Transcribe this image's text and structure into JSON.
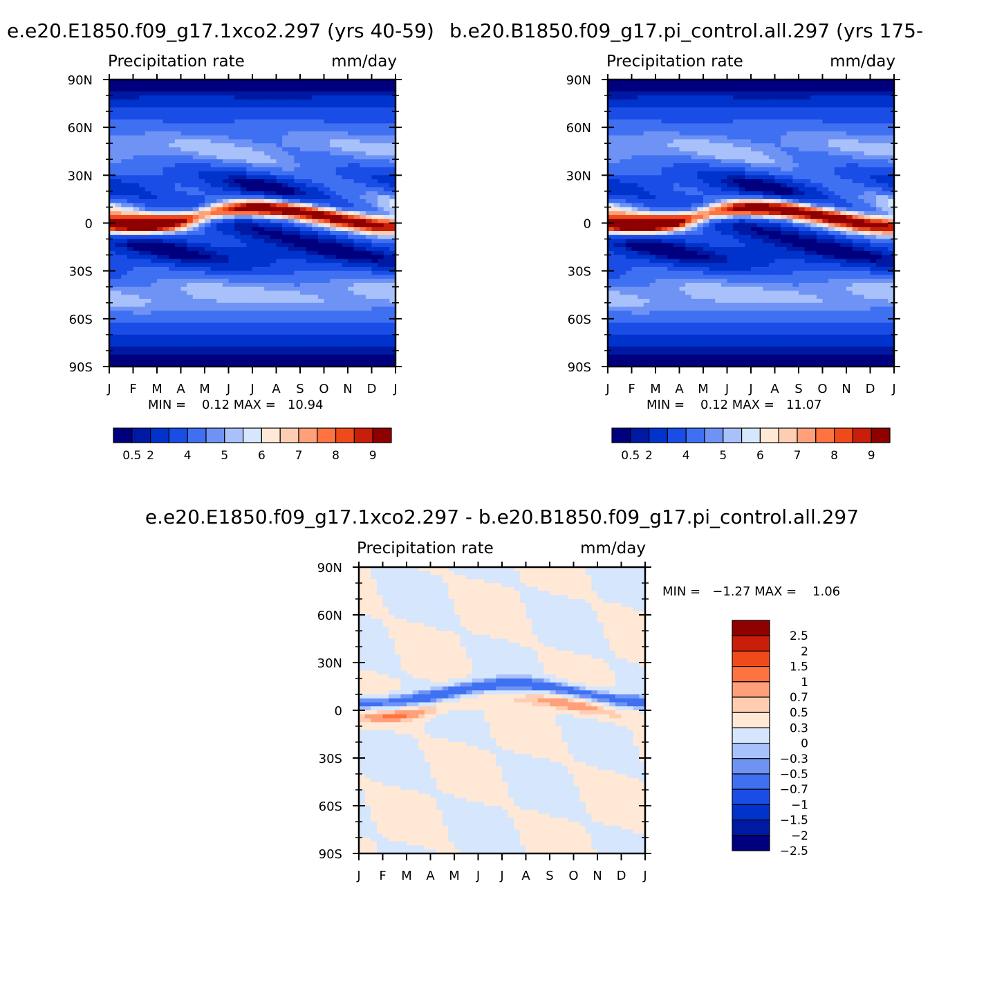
{
  "chart_data": [
    {
      "type": "heatmap",
      "title": "e.e20.E1850.f09_g17.1xco2.297 (yrs 40-59)",
      "left_label": "Precipitation rate",
      "right_label": "mm/day",
      "x_ticks": [
        "J",
        "F",
        "M",
        "A",
        "M",
        "J",
        "J",
        "A",
        "S",
        "O",
        "N",
        "D",
        "J"
      ],
      "y_ticks": [
        "90N",
        "60N",
        "30N",
        "0",
        "30S",
        "60S",
        "90S"
      ],
      "stats": "MIN =    0.12 MAX =   10.94",
      "min": 0.12,
      "max": 10.94,
      "levels": [
        0.5,
        1,
        2,
        3,
        4,
        4.5,
        5,
        5.5,
        6,
        6.5,
        7,
        7.5,
        8,
        8.5,
        9
      ],
      "colorbar_labels": [
        "0.5",
        "2",
        "4",
        "5",
        "6",
        "7",
        "8",
        "9"
      ],
      "itcz_peak": 10.9
    },
    {
      "type": "heatmap",
      "title": "b.e20.B1850.f09_g17.pi_control.all.297 (yrs 175-",
      "left_label": "Precipitation rate",
      "right_label": "mm/day",
      "x_ticks": [
        "J",
        "F",
        "M",
        "A",
        "M",
        "J",
        "J",
        "A",
        "S",
        "O",
        "N",
        "D",
        "J"
      ],
      "y_ticks": [
        "90N",
        "60N",
        "30N",
        "0",
        "30S",
        "60S",
        "90S"
      ],
      "stats": "MIN =    0.12 MAX =   11.07",
      "min": 0.12,
      "max": 11.07,
      "levels": [
        0.5,
        1,
        2,
        3,
        4,
        4.5,
        5,
        5.5,
        6,
        6.5,
        7,
        7.5,
        8,
        8.5,
        9
      ],
      "colorbar_labels": [
        "0.5",
        "2",
        "4",
        "5",
        "6",
        "7",
        "8",
        "9"
      ],
      "itcz_peak": 11.07
    },
    {
      "type": "heatmap",
      "title": "e.e20.E1850.f09_g17.1xco2.297 - b.e20.B1850.f09_g17.pi_control.all.297",
      "left_label": "Precipitation rate",
      "right_label": "mm/day",
      "x_ticks": [
        "J",
        "F",
        "M",
        "A",
        "M",
        "J",
        "J",
        "A",
        "S",
        "O",
        "N",
        "D",
        "J"
      ],
      "y_ticks": [
        "90N",
        "60N",
        "30N",
        "0",
        "30S",
        "60S",
        "90S"
      ],
      "stats": "MIN =   −1.27 MAX =    1.06",
      "min": -1.27,
      "max": 1.06,
      "levels": [
        -2.5,
        -2,
        -1.5,
        -1,
        -0.7,
        -0.5,
        -0.3,
        0,
        0.3,
        0.5,
        0.7,
        1,
        1.5,
        2,
        2.5
      ],
      "colorbar_labels": [
        "2.5",
        "2",
        "1.5",
        "1",
        "0.7",
        "0.5",
        "0.3",
        "0",
        "−0.3",
        "−0.5",
        "−0.7",
        "−1",
        "−1.5",
        "−2",
        "−2.5"
      ]
    }
  ],
  "colors": {
    "seq": [
      "#00007f",
      "#0019a3",
      "#0033cc",
      "#1a4ce6",
      "#3f70f2",
      "#6e93f5",
      "#a9c1fa",
      "#d5e6fd",
      "#ffe8d6",
      "#ffcdb2",
      "#ffa07a",
      "#ff7340",
      "#f04a1a",
      "#c81e0a",
      "#8f0000"
    ],
    "diff": [
      "#8f0000",
      "#c81e0a",
      "#f04a1a",
      "#ff7340",
      "#ffa07a",
      "#ffcdb2",
      "#ffe8d6",
      "#d5e6fd",
      "#a9c1fa",
      "#6e93f5",
      "#3f70f2",
      "#1a4ce6",
      "#0033cc",
      "#0019a3",
      "#00007f"
    ]
  }
}
